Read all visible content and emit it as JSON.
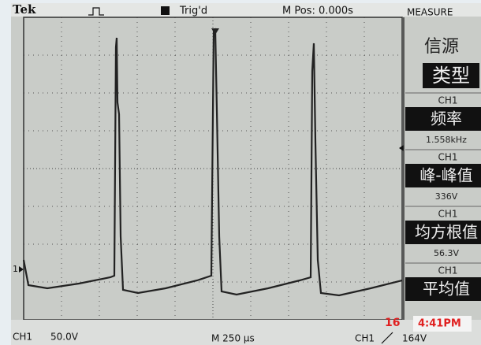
{
  "header": {
    "brand": "Tek",
    "trigger_status": "Trig'd",
    "position": "M Pos: 0.000s",
    "menu_title": "MEASURE"
  },
  "menu": {
    "source_label": "信源",
    "type_label": "类型",
    "measurements": [
      {
        "source": "CH1",
        "label": "频率",
        "value": "1.558kHz"
      },
      {
        "source": "CH1",
        "label": "峰-峰值",
        "value": "336V"
      },
      {
        "source": "CH1",
        "label": "均方根值",
        "value": "56.3V"
      },
      {
        "source": "CH1",
        "label": "平均值"
      }
    ]
  },
  "marker": "1",
  "footer": {
    "channel": "CH1",
    "volts": "50.0V",
    "timebase": "M 250 µs",
    "trigger_source": "CH1",
    "trigger_level": "164V",
    "date": "16",
    "time": "4:41PM"
  }
}
